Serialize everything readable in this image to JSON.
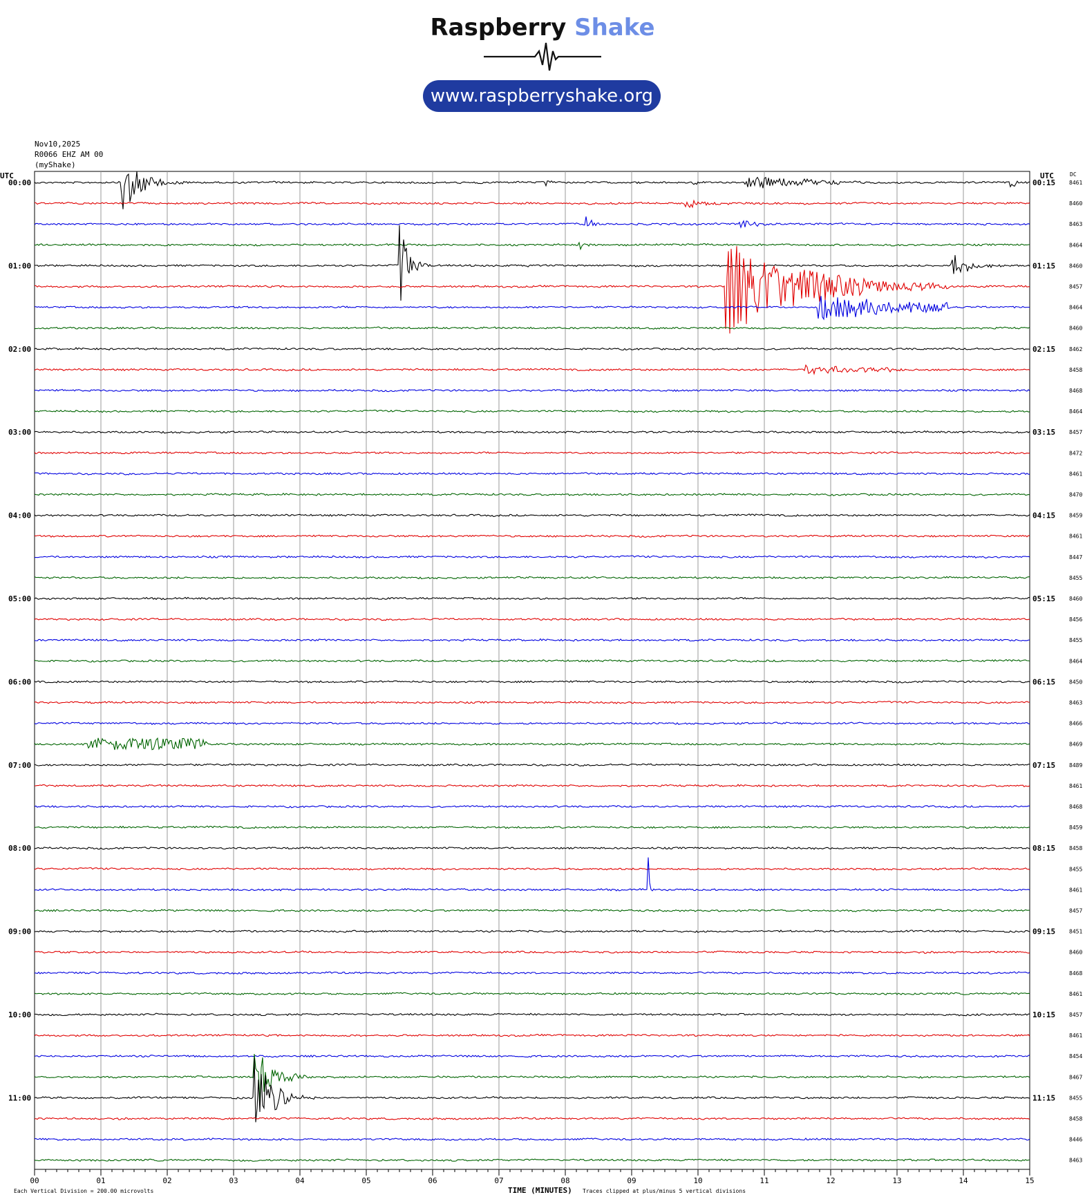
{
  "logo": {
    "brand_main": "Raspberry",
    "brand_accent": "Shake",
    "url": "www.raspberryshake.org",
    "accent_color": "#6d8ee6",
    "pill_color": "#1f3ba0"
  },
  "header": {
    "date": "Nov10,2025",
    "station": "R0066 EHZ AM 00",
    "source": "(myShake)",
    "utc_left": "UTC",
    "utc_right": "UTC",
    "dc_label": "DC"
  },
  "footer": {
    "division_note": "Each Vertical Division =  200.00 microvolts",
    "xlabel": "TIME (MINUTES)",
    "clip_note": "Traces clipped at plus/minus 5 vertical divisions"
  },
  "chart_data": {
    "type": "line",
    "subtype": "helicorder",
    "xlabel": "TIME (MINUTES)",
    "x_ticks": [
      "00",
      "01",
      "02",
      "03",
      "04",
      "05",
      "06",
      "07",
      "08",
      "09",
      "10",
      "11",
      "12",
      "13",
      "14",
      "15"
    ],
    "xlim": [
      0,
      15
    ],
    "trace_colors": [
      "#000000",
      "#e00000",
      "#0000e0",
      "#006400"
    ],
    "row_labels_left": [
      "00:00",
      "01:00",
      "02:00",
      "03:00",
      "04:00",
      "05:00",
      "06:00",
      "07:00",
      "08:00",
      "09:00",
      "10:00",
      "11:00"
    ],
    "row_labels_right": [
      "00:15",
      "01:15",
      "02:15",
      "03:15",
      "04:15",
      "05:15",
      "06:15",
      "07:15",
      "08:15",
      "09:15",
      "10:15",
      "11:15"
    ],
    "dc_values": [
      8461,
      8460,
      8463,
      8464,
      8460,
      8457,
      8464,
      8460,
      8462,
      8458,
      8468,
      8464,
      8457,
      8472,
      8461,
      8470,
      8459,
      8461,
      8447,
      8455,
      8460,
      8456,
      8455,
      8464,
      8450,
      8463,
      8466,
      8469,
      8489,
      8461,
      8468,
      8459,
      8458,
      8455,
      8461,
      8457,
      8451,
      8460,
      8468,
      8461,
      8457,
      8461,
      8454,
      8467,
      8455,
      8458,
      8446,
      8463
    ],
    "events": [
      {
        "row": 0,
        "minute": 1.3,
        "duration": 1.0,
        "amp": 3.5,
        "decay": 4
      },
      {
        "row": 0,
        "minute": 7.7,
        "duration": 0.3,
        "amp": 0.5,
        "decay": 5
      },
      {
        "row": 0,
        "minute": 9.9,
        "duration": 0.3,
        "amp": 0.6,
        "decay": 5
      },
      {
        "row": 0,
        "minute": 10.7,
        "duration": 1.8,
        "amp": 0.7,
        "decay": 2
      },
      {
        "row": 0,
        "minute": 14.7,
        "duration": 0.4,
        "amp": 1.0,
        "decay": 6
      },
      {
        "row": 1,
        "minute": 9.8,
        "duration": 0.8,
        "amp": 0.5,
        "decay": 2
      },
      {
        "row": 2,
        "minute": 8.3,
        "duration": 0.3,
        "amp": 1.6,
        "decay": 5
      },
      {
        "row": 2,
        "minute": 10.6,
        "duration": 0.5,
        "amp": 0.8,
        "decay": 3
      },
      {
        "row": 3,
        "minute": 8.2,
        "duration": 0.3,
        "amp": 0.6,
        "decay": 4
      },
      {
        "row": 4,
        "minute": 5.5,
        "duration": 0.5,
        "amp": 5,
        "decay": 4
      },
      {
        "row": 4,
        "minute": 13.8,
        "duration": 0.9,
        "amp": 1.6,
        "decay": 4
      },
      {
        "row": 4,
        "minute": 7.4,
        "duration": 0.2,
        "amp": 0.5,
        "decay": 5
      },
      {
        "row": 5,
        "minute": 10.4,
        "duration": 3.4,
        "amp": 5,
        "decay": 3
      },
      {
        "row": 6,
        "minute": 11.8,
        "duration": 2.0,
        "amp": 1.2,
        "decay": 1
      },
      {
        "row": 9,
        "minute": 11.6,
        "duration": 1.5,
        "amp": 0.4,
        "decay": 1
      },
      {
        "row": 27,
        "minute": 0.8,
        "duration": 1.8,
        "amp": 0.6,
        "decay": 0
      },
      {
        "row": 34,
        "minute": 9.25,
        "duration": 0.1,
        "amp": 5,
        "decay": 6
      },
      {
        "row": 43,
        "minute": 3.3,
        "duration": 1.0,
        "amp": 3.5,
        "decay": 4
      },
      {
        "row": 44,
        "minute": 3.3,
        "duration": 1.0,
        "amp": 4.5,
        "decay": 4
      }
    ]
  }
}
